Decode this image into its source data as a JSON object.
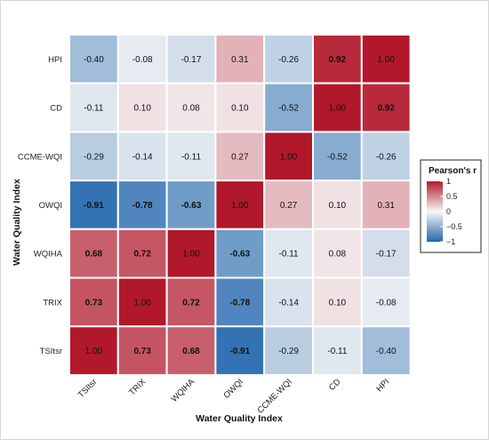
{
  "chart_data": {
    "type": "heatmap",
    "xlabel": "Water Quality Index",
    "ylabel": "Water Quality Index",
    "x_categories": [
      "TSItsr",
      "TRIX",
      "WQIHA",
      "OWQI",
      "CCME-WQI",
      "CD",
      "HPI"
    ],
    "y_categories_top_to_bottom": [
      "HPI",
      "CD",
      "CCME-WQI",
      "OWQI",
      "WQIHA",
      "TRIX",
      "TSItsr"
    ],
    "matrix_rows_top_to_bottom": [
      [
        "-0.40",
        "-0.08",
        "-0.17",
        "0.31",
        "-0.26",
        "0.92",
        "1.00"
      ],
      [
        "-0.11",
        "0.10",
        "0.08",
        "0.10",
        "-0.52",
        "1.00",
        "0.92"
      ],
      [
        "-0.29",
        "-0.14",
        "-0.11",
        "0.27",
        "1.00",
        "-0.52",
        "-0.26"
      ],
      [
        "-0.91",
        "-0.78",
        "-0.63",
        "1.00",
        "0.27",
        "0.10",
        "0.31"
      ],
      [
        "0.68",
        "0.72",
        "1.00",
        "-0.63",
        "-0.11",
        "0.08",
        "-0.17"
      ],
      [
        "0.73",
        "1.00",
        "0.72",
        "-0.78",
        "-0.14",
        "0.10",
        "-0.08"
      ],
      [
        "1.00",
        "0.73",
        "0.68",
        "-0.91",
        "-0.29",
        "-0.11",
        "-0.40"
      ]
    ],
    "bold_threshold_abs": 0.6,
    "legend": {
      "title": "Pearson's r",
      "placement": "right",
      "ticks": [
        "1",
        "0.5",
        "0",
        "−0.5",
        "−1"
      ],
      "tick_values": [
        1,
        0.5,
        0,
        -0.5,
        -1
      ],
      "color_high": "#b2182b",
      "color_mid": "#f7f7f7",
      "color_low": "#2166ac"
    },
    "grid": false
  }
}
